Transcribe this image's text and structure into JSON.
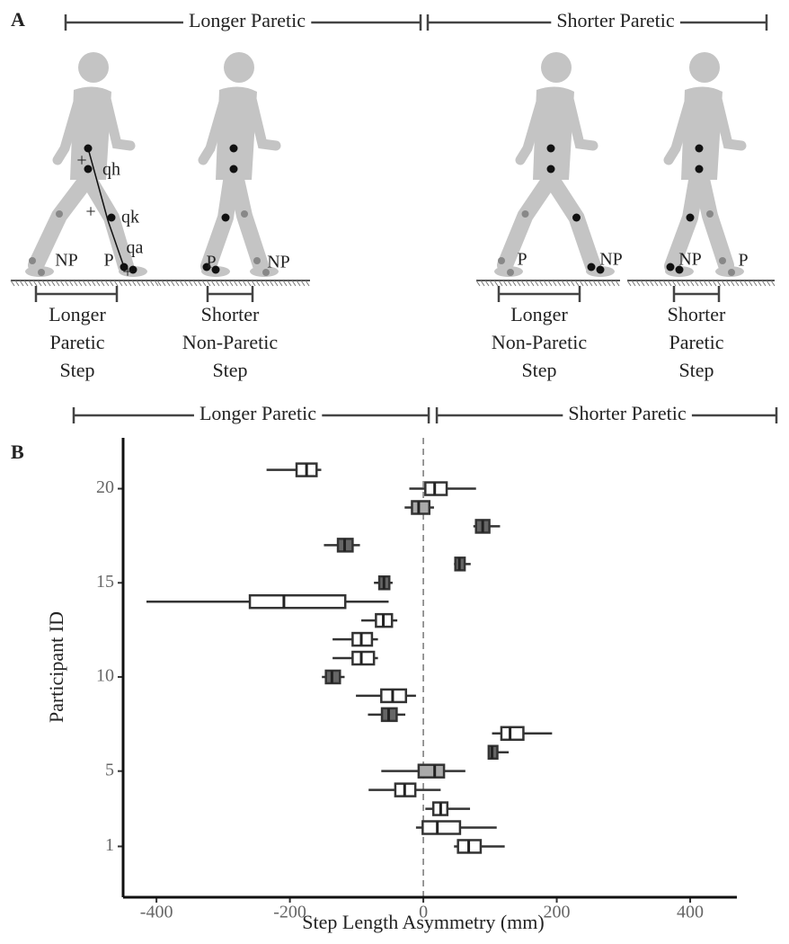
{
  "diagram": {
    "panel_label": "A",
    "group_labels": [
      "Longer Paretic",
      "Shorter Paretic"
    ],
    "figure_labels": [
      "NP",
      "P",
      "qh",
      "qk",
      "qa",
      "+",
      "+",
      "+",
      "P",
      "NP",
      "P",
      "NP",
      "NP",
      "P"
    ],
    "step_labels": [
      [
        "Longer",
        "Paretic",
        "Step"
      ],
      [
        "Shorter",
        "Non-Paretic",
        "Step"
      ],
      [
        "Longer",
        "Non-Paretic",
        "Step"
      ],
      [
        "Shorter",
        "Paretic",
        "Step"
      ]
    ]
  },
  "chart_data": {
    "type": "boxplot",
    "panel_label": "B",
    "region_labels": [
      "Longer Paretic",
      "Shorter Paretic"
    ],
    "xlabel": "Step Length Asymmetry (mm)",
    "ylabel": "Participant ID",
    "xlim": [
      -450,
      470
    ],
    "ylim": [
      -1.7,
      22.7
    ],
    "xticks": [
      -400,
      -200,
      0,
      200,
      400
    ],
    "yticks": [
      1,
      5,
      10,
      15,
      20
    ],
    "reference_line": 0,
    "boxes": [
      {
        "id": 21,
        "whisker_low": -235,
        "q1": -190,
        "median": -175,
        "q3": -160,
        "whisker_high": -153,
        "fill": "#ffffff"
      },
      {
        "id": 20,
        "whisker_low": -21,
        "q1": 3,
        "median": 17,
        "q3": 35,
        "whisker_high": 79,
        "fill": "#ffffff"
      },
      {
        "id": 19,
        "whisker_low": -28,
        "q1": -17,
        "median": -7,
        "q3": 9,
        "whisker_high": 16,
        "fill": "#aaaaaa"
      },
      {
        "id": 18,
        "whisker_low": 75,
        "q1": 79,
        "median": 89,
        "q3": 99,
        "whisker_high": 115,
        "fill": "#666666"
      },
      {
        "id": 17,
        "whisker_low": -149,
        "q1": -128,
        "median": -118,
        "q3": -106,
        "whisker_high": -95,
        "fill": "#666666"
      },
      {
        "id": 16,
        "whisker_low": 46,
        "q1": 48,
        "median": 54,
        "q3": 62,
        "whisker_high": 71,
        "fill": "#666666"
      },
      {
        "id": 15,
        "whisker_low": -74,
        "q1": -66,
        "median": -59,
        "q3": -51,
        "whisker_high": -46,
        "fill": "#666666"
      },
      {
        "id": 14,
        "whisker_low": -415,
        "q1": -260,
        "median": -209,
        "q3": -117,
        "whisker_high": -52,
        "fill": "#ffffff"
      },
      {
        "id": 13,
        "whisker_low": -93,
        "q1": -71,
        "median": -60,
        "q3": -47,
        "whisker_high": -39,
        "fill": "#ffffff"
      },
      {
        "id": 12,
        "whisker_low": -136,
        "q1": -106,
        "median": -93,
        "q3": -77,
        "whisker_high": -68,
        "fill": "#ffffff"
      },
      {
        "id": 11,
        "whisker_low": -136,
        "q1": -106,
        "median": -93,
        "q3": -74,
        "whisker_high": -68,
        "fill": "#ffffff"
      },
      {
        "id": 10,
        "whisker_low": -152,
        "q1": -146,
        "median": -137,
        "q3": -125,
        "whisker_high": -118,
        "fill": "#666666"
      },
      {
        "id": 9,
        "whisker_low": -101,
        "q1": -63,
        "median": -46,
        "q3": -26,
        "whisker_high": -11,
        "fill": "#ffffff"
      },
      {
        "id": 8,
        "whisker_low": -83,
        "q1": -62,
        "median": -52,
        "q3": -40,
        "whisker_high": -27,
        "fill": "#666666"
      },
      {
        "id": 7,
        "whisker_low": 103,
        "q1": 117,
        "median": 130,
        "q3": 150,
        "whisker_high": 193,
        "fill": "#ffffff"
      },
      {
        "id": 6,
        "whisker_low": 97,
        "q1": 98,
        "median": 103,
        "q3": 111,
        "whisker_high": 128,
        "fill": "#666666"
      },
      {
        "id": 5,
        "whisker_low": -63,
        "q1": -7,
        "median": 17,
        "q3": 31,
        "whisker_high": 63,
        "fill": "#aaaaaa"
      },
      {
        "id": 4,
        "whisker_low": -82,
        "q1": -42,
        "median": -28,
        "q3": -12,
        "whisker_high": 26,
        "fill": "#ffffff"
      },
      {
        "id": 3,
        "whisker_low": 3,
        "q1": 15,
        "median": 26,
        "q3": 36,
        "whisker_high": 70,
        "fill": "#ffffff"
      },
      {
        "id": 2,
        "whisker_low": -11,
        "q1": -1,
        "median": 21,
        "q3": 55,
        "whisker_high": 110,
        "fill": "#ffffff"
      },
      {
        "id": 1,
        "whisker_low": 46,
        "q1": 52,
        "median": 68,
        "q3": 86,
        "whisker_high": 122,
        "fill": "#ffffff"
      }
    ]
  }
}
